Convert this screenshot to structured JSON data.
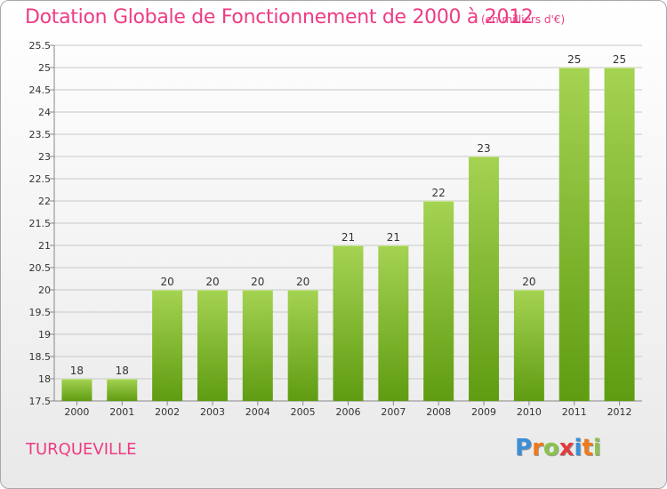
{
  "title": "Dotation Globale de Fonctionnement de 2000 à 2012",
  "units_note": "(en milliers d'€)",
  "commune": "TURQUEVILLE",
  "brand": {
    "text": "Proxiti",
    "colors": [
      "#3a8fd6",
      "#f07a1a",
      "#8bc34a",
      "#e23b3b",
      "#3a8fd6",
      "#f07a1a",
      "#8bc34a"
    ]
  },
  "colors": {
    "accent": "#ee3c84",
    "bar_light": "#a5d352",
    "bar_dark": "#5f9c12",
    "grid": "#c8c8c8"
  },
  "chart_data": {
    "type": "bar",
    "title": "Dotation Globale de Fonctionnement de 2000 à 2012",
    "subtitle": "(en milliers d'€)",
    "xlabel": "",
    "ylabel": "",
    "categories": [
      "2000",
      "2001",
      "2002",
      "2003",
      "2004",
      "2005",
      "2006",
      "2007",
      "2008",
      "2009",
      "2010",
      "2011",
      "2012"
    ],
    "values": [
      18,
      18,
      20,
      20,
      20,
      20,
      21,
      21,
      22,
      23,
      20,
      25,
      25
    ],
    "value_labels": [
      "18",
      "18",
      "20",
      "20",
      "20",
      "20",
      "21",
      "21",
      "22",
      "23",
      "20",
      "25",
      "25"
    ],
    "ylim": [
      17.5,
      25.5
    ],
    "yticks": [
      17.5,
      18,
      18.5,
      19,
      19.5,
      20,
      20.5,
      21,
      21.5,
      22,
      22.5,
      23,
      23.5,
      24,
      24.5,
      25,
      25.5
    ],
    "ytick_labels": [
      "17.5",
      "18",
      "18.5",
      "19",
      "19.5",
      "20",
      "20.5",
      "21",
      "21.5",
      "22",
      "22.5",
      "23",
      "23.5",
      "24",
      "24.5",
      "25",
      "25.5"
    ],
    "grid": true,
    "legend": "none"
  }
}
